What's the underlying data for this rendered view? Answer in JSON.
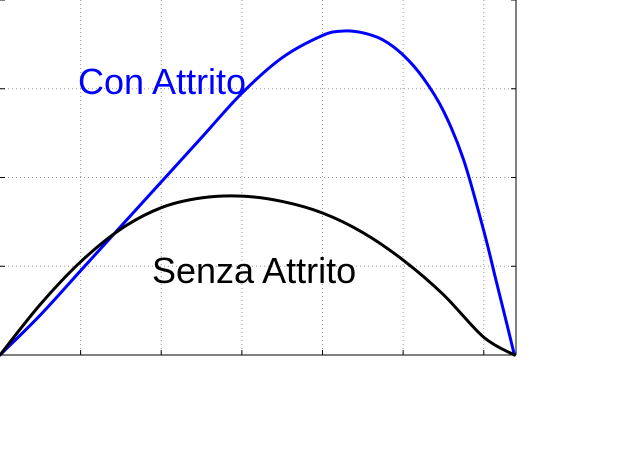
{
  "chart_data": {
    "type": "line",
    "title": "",
    "xlabel": "",
    "ylabel": "",
    "xlim": [
      0,
      6.4
    ],
    "ylim": [
      0,
      4
    ],
    "grid": true,
    "series": [
      {
        "name": "Con Attrito",
        "color": "#0000ff",
        "x": [
          0,
          0.5,
          1,
          1.5,
          2,
          2.5,
          3,
          3.5,
          4,
          4.25,
          4.5,
          4.75,
          5,
          5.25,
          5.5,
          5.75,
          6,
          6.15,
          6.3,
          6.38
        ],
        "y": [
          0,
          0.45,
          0.95,
          1.45,
          1.95,
          2.45,
          2.95,
          3.35,
          3.6,
          3.65,
          3.63,
          3.55,
          3.38,
          3.12,
          2.75,
          2.2,
          1.4,
          0.85,
          0.3,
          0
        ]
      },
      {
        "name": "Senza Attrito",
        "color": "#000000",
        "x": [
          0,
          0.5,
          1,
          1.5,
          2,
          2.5,
          3,
          3.5,
          4,
          4.5,
          5,
          5.5,
          6,
          6.38
        ],
        "y": [
          0,
          0.57,
          1.05,
          1.42,
          1.66,
          1.77,
          1.79,
          1.73,
          1.6,
          1.38,
          1.07,
          0.68,
          0.2,
          0
        ]
      }
    ]
  },
  "labels": {
    "con_attrito": "Con Attrito",
    "senza_attrito": "Senza Attrito"
  }
}
